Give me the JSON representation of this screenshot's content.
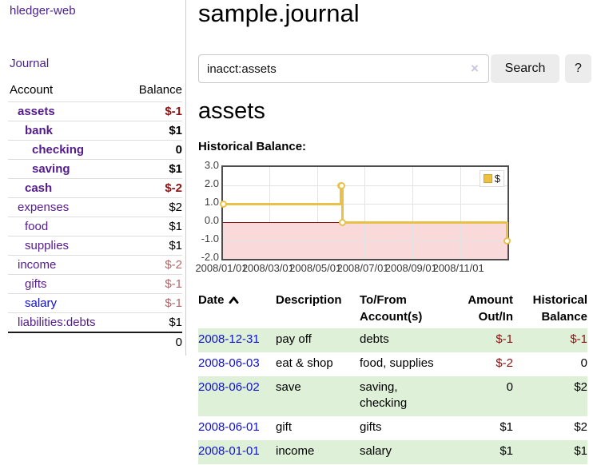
{
  "app_title": "hledger-web",
  "sidebar": {
    "journal_link": "Journal",
    "accounts": {
      "header_account": "Account",
      "header_balance": "Balance",
      "rows": [
        {
          "name": "assets",
          "balance": "$-1",
          "depth": 0,
          "matched": true,
          "link_color": "purple",
          "balance_tone": "negative"
        },
        {
          "name": "bank",
          "balance": "$1",
          "depth": 1,
          "matched": true,
          "link_color": "purple",
          "balance_tone": "normal"
        },
        {
          "name": "checking",
          "balance": "0",
          "depth": 2,
          "matched": true,
          "link_color": "purple",
          "balance_tone": "normal"
        },
        {
          "name": "saving",
          "balance": "$1",
          "depth": 2,
          "matched": true,
          "link_color": "purple",
          "balance_tone": "normal"
        },
        {
          "name": "cash",
          "balance": "$-2",
          "depth": 1,
          "matched": true,
          "link_color": "purple",
          "balance_tone": "negative"
        },
        {
          "name": "expenses",
          "balance": "$2",
          "depth": 0,
          "matched": false,
          "link_color": "purple",
          "balance_tone": "normal"
        },
        {
          "name": "food",
          "balance": "$1",
          "depth": 1,
          "matched": false,
          "link_color": "purple",
          "balance_tone": "normal"
        },
        {
          "name": "supplies",
          "balance": "$1",
          "depth": 1,
          "matched": false,
          "link_color": "purple",
          "balance_tone": "normal"
        },
        {
          "name": "income",
          "balance": "$-2",
          "depth": 0,
          "matched": false,
          "link_color": "purple",
          "balance_tone": "negative-muted"
        },
        {
          "name": "gifts",
          "balance": "$-1",
          "depth": 1,
          "matched": false,
          "link_color": "purple",
          "balance_tone": "negative-muted"
        },
        {
          "name": "salary",
          "balance": "$-1",
          "depth": 1,
          "matched": false,
          "link_color": "blue",
          "balance_tone": "negative-muted"
        },
        {
          "name": "liabilities:debts",
          "balance": "$1",
          "depth": 0,
          "matched": false,
          "link_color": "purple",
          "balance_tone": "normal"
        }
      ],
      "total": "0"
    }
  },
  "main": {
    "title": "sample.journal",
    "search": {
      "value": "inacct:assets",
      "clear_icon": "×",
      "search_button": "Search",
      "help_button": "?"
    },
    "account_heading": "assets",
    "chart_label": "Historical Balance:",
    "register": {
      "headers": {
        "date": "Date",
        "description": "Description",
        "accounts": "To/From\nAccount(s)",
        "amount": "Amount\nOut/In",
        "balance": "Historical\nBalance"
      },
      "rows": [
        {
          "date": "2008-12-31",
          "description": "pay off",
          "accounts": "debts",
          "amount": "$-1",
          "amount_tone": "negative",
          "balance": "$-1",
          "balance_tone": "negative",
          "highlight": true
        },
        {
          "date": "2008-06-03",
          "description": "eat & shop",
          "accounts": "food, supplies",
          "amount": "$-2",
          "amount_tone": "negative",
          "balance": "0",
          "balance_tone": "normal",
          "highlight": false
        },
        {
          "date": "2008-06-02",
          "description": "save",
          "accounts": "saving,\nchecking",
          "amount": "0",
          "amount_tone": "normal",
          "balance": "$2",
          "balance_tone": "normal",
          "highlight": true
        },
        {
          "date": "2008-06-01",
          "description": "gift",
          "accounts": "gifts",
          "amount": "$1",
          "amount_tone": "normal",
          "balance": "$2",
          "balance_tone": "normal",
          "highlight": false
        },
        {
          "date": "2008-01-01",
          "description": "income",
          "accounts": "salary",
          "amount": "$1",
          "amount_tone": "normal",
          "balance": "$1",
          "balance_tone": "normal",
          "highlight": true
        }
      ]
    }
  },
  "chart_data": {
    "type": "line",
    "title": "Historical Balance:",
    "step": true,
    "series": [
      {
        "name": "$",
        "color": "#edc240",
        "points": [
          [
            "2008-01-01",
            1
          ],
          [
            "2008-06-01",
            2
          ],
          [
            "2008-06-02",
            2
          ],
          [
            "2008-06-03",
            0
          ],
          [
            "2008-12-31",
            -1
          ]
        ]
      }
    ],
    "x_ticks": [
      "2008/01/01",
      "2008/03/01",
      "2008/05/01",
      "2008/07/01",
      "2008/09/01",
      "2008/11/01"
    ],
    "y_ticks": [
      3.0,
      2.0,
      1.0,
      0.0,
      -1.0,
      -2.0
    ],
    "xlim": [
      "2008-01-01",
      "2009-01-01"
    ],
    "ylim": [
      -2,
      3
    ],
    "grid": true,
    "legend_position": "top-right",
    "negative_region": true,
    "colors": {
      "line": "#edc240",
      "negative_fill": "#f9d9d9",
      "zero_line": "#8c1717",
      "border": "#4d4d4d"
    }
  },
  "colors": {
    "purple_link": "#541b8c",
    "blue_link": "#0f10cf",
    "negative": "#8b1212",
    "negative_muted": "#b06767",
    "row_highlight": "#dff0d8",
    "accent_gold": "#edc240"
  }
}
